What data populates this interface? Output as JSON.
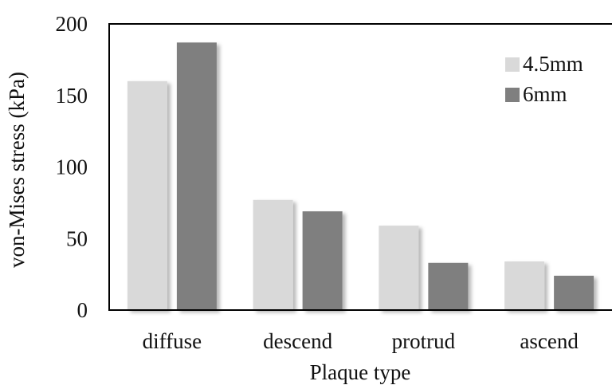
{
  "chart_data": {
    "type": "bar",
    "categories": [
      "diffuse",
      "descend",
      "protrud",
      "ascend"
    ],
    "series": [
      {
        "name": "4.5mm",
        "color": "#d9d9d9",
        "values": [
          160,
          77,
          59,
          34
        ]
      },
      {
        "name": "6mm",
        "color": "#7f7f7f",
        "values": [
          187,
          69,
          33,
          24
        ]
      }
    ],
    "title": "",
    "xlabel": "Plaque type",
    "ylabel": "von-Mises stress (kPa)",
    "ylim": [
      0,
      200
    ],
    "yticks": [
      "0",
      "50",
      "100",
      "150",
      "200"
    ],
    "grid": false,
    "legend_position": "top-right"
  }
}
